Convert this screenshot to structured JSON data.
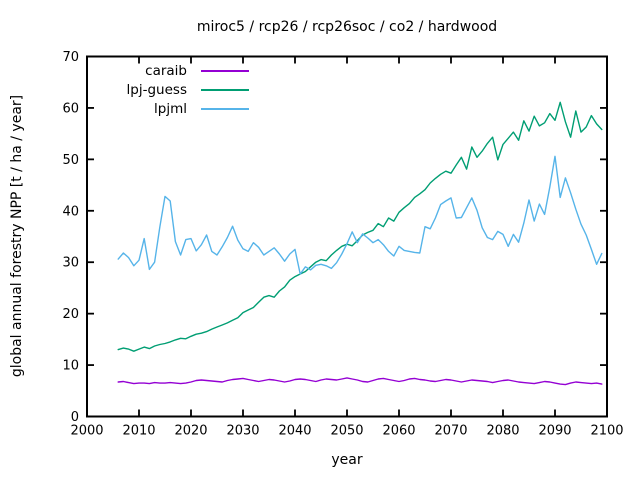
{
  "title": "miroc5 / rcp26 / rcp26soc / co2 / hardwood",
  "colors": {
    "background": "#ffffff",
    "axis": "#000000",
    "text": "#000000"
  },
  "chart_data": {
    "type": "line",
    "title": "miroc5 / rcp26 / rcp26soc / co2 / hardwood",
    "xlabel": "year",
    "ylabel": "global annual forestry NPP [t / ha / year]",
    "xlim": [
      2000,
      2100
    ],
    "ylim": [
      0,
      70
    ],
    "x_ticks": [
      2000,
      2010,
      2020,
      2030,
      2040,
      2050,
      2060,
      2070,
      2080,
      2090,
      2100
    ],
    "y_ticks": [
      0,
      10,
      20,
      30,
      40,
      50,
      60,
      70
    ],
    "grid": false,
    "legend_position": "top-left-inside",
    "x_start": 2006,
    "x_step": 1,
    "series": [
      {
        "name": "caraib",
        "color": "#9400d3",
        "values": [
          6.7,
          6.8,
          6.6,
          6.4,
          6.5,
          6.5,
          6.4,
          6.6,
          6.5,
          6.5,
          6.6,
          6.5,
          6.4,
          6.5,
          6.7,
          7.0,
          7.1,
          7.0,
          6.9,
          6.8,
          6.7,
          7.0,
          7.2,
          7.3,
          7.4,
          7.2,
          7.0,
          6.8,
          7.0,
          7.2,
          7.1,
          6.9,
          6.7,
          6.9,
          7.2,
          7.3,
          7.2,
          7.0,
          6.8,
          7.1,
          7.3,
          7.2,
          7.1,
          7.3,
          7.5,
          7.3,
          7.1,
          6.8,
          6.7,
          7.0,
          7.3,
          7.4,
          7.2,
          7.0,
          6.8,
          7.0,
          7.3,
          7.4,
          7.2,
          7.1,
          6.9,
          6.8,
          7.0,
          7.2,
          7.1,
          6.9,
          6.7,
          6.9,
          7.1,
          7.0,
          6.9,
          6.8,
          6.6,
          6.8,
          7.0,
          7.1,
          6.9,
          6.7,
          6.6,
          6.5,
          6.4,
          6.6,
          6.8,
          6.7,
          6.5,
          6.3,
          6.2,
          6.5,
          6.7,
          6.6,
          6.5,
          6.4,
          6.5,
          6.3
        ]
      },
      {
        "name": "lpj-guess",
        "color": "#009e73",
        "values": [
          13.0,
          13.3,
          13.1,
          12.7,
          13.1,
          13.5,
          13.2,
          13.7,
          14.0,
          14.2,
          14.5,
          14.9,
          15.2,
          15.1,
          15.6,
          16.0,
          16.2,
          16.5,
          17.0,
          17.4,
          17.8,
          18.2,
          18.7,
          19.2,
          20.2,
          20.7,
          21.2,
          22.2,
          23.2,
          23.5,
          23.2,
          24.4,
          25.2,
          26.5,
          27.2,
          27.7,
          28.2,
          29.1,
          30.0,
          30.5,
          30.3,
          31.4,
          32.3,
          33.1,
          33.5,
          33.2,
          34.2,
          35.3,
          35.8,
          36.2,
          37.5,
          36.9,
          38.6,
          38.0,
          39.7,
          40.6,
          41.4,
          42.6,
          43.3,
          44.1,
          45.4,
          46.3,
          47.1,
          47.7,
          47.3,
          48.9,
          50.4,
          48.1,
          52.4,
          50.4,
          51.6,
          53.1,
          54.3,
          49.9,
          52.9,
          54.1,
          55.3,
          53.7,
          57.5,
          55.5,
          58.4,
          56.5,
          57.1,
          58.9,
          57.6,
          61.1,
          57.3,
          54.3,
          59.4,
          55.3,
          56.3,
          58.5,
          56.9,
          55.8
        ]
      },
      {
        "name": "lpjml",
        "color": "#56b4e9",
        "values": [
          30.6,
          31.8,
          30.9,
          29.3,
          30.4,
          34.6,
          28.6,
          30.0,
          36.8,
          42.8,
          41.9,
          34.0,
          31.4,
          34.4,
          34.6,
          32.2,
          33.4,
          35.3,
          32.1,
          31.4,
          33.0,
          34.8,
          37.0,
          34.3,
          32.6,
          32.1,
          33.8,
          32.9,
          31.4,
          32.1,
          32.8,
          31.6,
          30.2,
          31.6,
          32.5,
          27.7,
          29.1,
          28.5,
          29.4,
          29.6,
          29.3,
          28.8,
          29.9,
          31.6,
          33.6,
          35.9,
          33.8,
          35.5,
          34.7,
          33.8,
          34.4,
          33.4,
          32.1,
          31.2,
          33.1,
          32.3,
          32.1,
          31.9,
          31.8,
          36.9,
          36.5,
          38.6,
          41.2,
          41.9,
          42.5,
          38.6,
          38.7,
          40.6,
          42.5,
          40.1,
          36.7,
          34.8,
          34.4,
          36.0,
          35.4,
          33.1,
          35.4,
          33.9,
          37.6,
          42.1,
          38.0,
          41.3,
          39.3,
          44.6,
          50.6,
          42.6,
          46.4,
          43.5,
          40.3,
          37.4,
          35.3,
          32.5,
          29.6,
          31.7
        ]
      }
    ]
  }
}
